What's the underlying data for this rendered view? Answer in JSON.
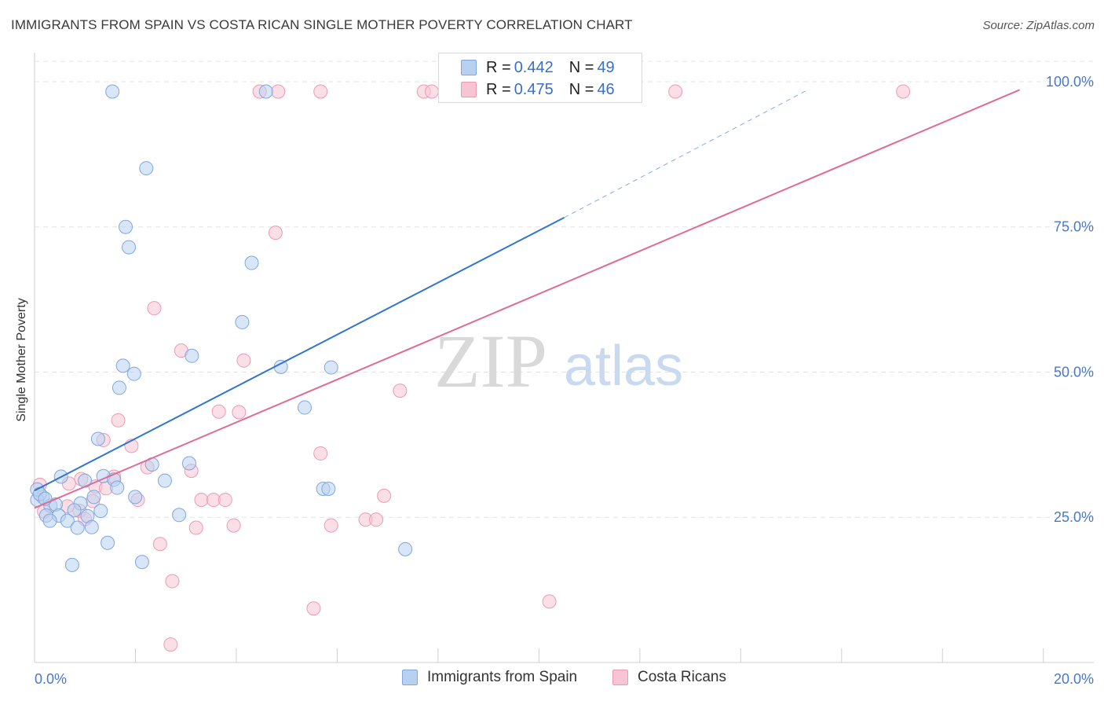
{
  "title": "IMMIGRANTS FROM SPAIN VS COSTA RICAN SINGLE MOTHER POVERTY CORRELATION CHART",
  "source": "Source: ZipAtlas.com",
  "watermark": {
    "zip": "ZIP",
    "atlas": "atlas"
  },
  "legend": {
    "rows": [
      {
        "r_label": "R = ",
        "r_value": "0.442",
        "n_label": "N = ",
        "n_value": "49"
      },
      {
        "r_label": "R = ",
        "r_value": "0.475",
        "n_label": "N = ",
        "n_value": "46"
      }
    ],
    "series": [
      "Immigrants from Spain",
      "Costa Ricans"
    ]
  },
  "colors": {
    "spain_fill": "#b9d1f1",
    "spain_stroke": "#7ea7e0",
    "spain_line": "#2f75d1",
    "costa_fill": "#f7c4d4",
    "costa_stroke": "#eb9ab6",
    "costa_line": "#e06b93",
    "tick_text": "#4a78c8",
    "grid": "#e3e3e3"
  },
  "chart_data": {
    "type": "scatter",
    "title": "IMMIGRANTS FROM SPAIN VS COSTA RICAN SINGLE MOTHER POVERTY CORRELATION CHART",
    "xlabel": "",
    "ylabel": "Single Mother Poverty",
    "xlim": [
      0,
      20
    ],
    "ylim": [
      0,
      105
    ],
    "x_tick_labels": [
      "0.0%",
      "20.0%"
    ],
    "y_ticks": [
      25,
      50,
      75,
      100
    ],
    "y_tick_labels": [
      "25.0%",
      "50.0%",
      "75.0%",
      "100.0%"
    ],
    "series": [
      {
        "name": "Immigrants from Spain",
        "r": 0.442,
        "n": 49,
        "trend": {
          "x0": 0.0,
          "y0": 29.6,
          "x1": 10.0,
          "y1": 76.6,
          "dashed_to_x": 14.6,
          "dashed_to_y": 98.6
        },
        "points": [
          [
            1.47,
            98.3
          ],
          [
            4.37,
            98.3
          ],
          [
            2.11,
            85.1
          ],
          [
            1.72,
            75.0
          ],
          [
            1.78,
            71.5
          ],
          [
            4.1,
            68.8
          ],
          [
            3.92,
            58.6
          ],
          [
            2.97,
            52.8
          ],
          [
            1.67,
            51.1
          ],
          [
            1.88,
            49.7
          ],
          [
            4.65,
            50.9
          ],
          [
            5.6,
            50.8
          ],
          [
            1.6,
            47.3
          ],
          [
            5.1,
            43.9
          ],
          [
            1.2,
            38.5
          ],
          [
            2.22,
            34.1
          ],
          [
            2.92,
            34.3
          ],
          [
            0.5,
            32.0
          ],
          [
            1.3,
            32.1
          ],
          [
            1.5,
            31.5
          ],
          [
            0.95,
            31.3
          ],
          [
            2.46,
            31.3
          ],
          [
            1.56,
            30.1
          ],
          [
            5.45,
            29.9
          ],
          [
            5.55,
            29.9
          ],
          [
            1.12,
            28.5
          ],
          [
            1.9,
            28.5
          ],
          [
            0.15,
            28.5
          ],
          [
            0.05,
            28.0
          ],
          [
            0.3,
            27.0
          ],
          [
            0.4,
            27.2
          ],
          [
            0.87,
            27.4
          ],
          [
            0.75,
            26.2
          ],
          [
            1.25,
            26.1
          ],
          [
            0.22,
            25.3
          ],
          [
            0.46,
            25.3
          ],
          [
            2.73,
            25.4
          ],
          [
            1.0,
            25.2
          ],
          [
            0.62,
            24.4
          ],
          [
            0.29,
            24.4
          ],
          [
            0.81,
            23.2
          ],
          [
            1.08,
            23.3
          ],
          [
            1.38,
            20.6
          ],
          [
            7.0,
            19.5
          ],
          [
            2.03,
            17.3
          ],
          [
            0.71,
            16.8
          ],
          [
            0.05,
            29.8
          ],
          [
            0.1,
            29.0
          ],
          [
            0.2,
            28.2
          ]
        ]
      },
      {
        "name": "Costa Ricans",
        "r": 0.475,
        "n": 46,
        "trend": {
          "x0": 0.0,
          "y0": 26.6,
          "x1": 18.6,
          "y1": 98.6
        },
        "points": [
          [
            4.25,
            98.3
          ],
          [
            4.6,
            98.3
          ],
          [
            5.4,
            98.3
          ],
          [
            7.35,
            98.3
          ],
          [
            7.5,
            98.3
          ],
          [
            12.1,
            98.3
          ],
          [
            16.4,
            98.3
          ],
          [
            4.55,
            74.0
          ],
          [
            2.26,
            61.0
          ],
          [
            2.77,
            53.7
          ],
          [
            3.95,
            52.0
          ],
          [
            6.9,
            46.8
          ],
          [
            3.48,
            43.2
          ],
          [
            3.86,
            43.1
          ],
          [
            1.58,
            41.7
          ],
          [
            1.3,
            38.3
          ],
          [
            1.83,
            37.3
          ],
          [
            5.4,
            36.0
          ],
          [
            2.13,
            33.6
          ],
          [
            2.96,
            33.0
          ],
          [
            0.1,
            30.6
          ],
          [
            0.88,
            31.6
          ],
          [
            0.65,
            30.8
          ],
          [
            1.15,
            30.3
          ],
          [
            1.5,
            32.0
          ],
          [
            1.35,
            30.0
          ],
          [
            1.95,
            28.0
          ],
          [
            3.15,
            28.0
          ],
          [
            3.38,
            28.0
          ],
          [
            3.6,
            28.0
          ],
          [
            6.6,
            28.7
          ],
          [
            0.62,
            26.9
          ],
          [
            0.85,
            26.1
          ],
          [
            1.1,
            27.8
          ],
          [
            0.18,
            26.0
          ],
          [
            0.95,
            24.7
          ],
          [
            6.25,
            24.6
          ],
          [
            6.45,
            24.6
          ],
          [
            3.05,
            23.2
          ],
          [
            3.76,
            23.6
          ],
          [
            5.6,
            23.6
          ],
          [
            2.37,
            20.4
          ],
          [
            2.6,
            14.0
          ],
          [
            5.27,
            9.3
          ],
          [
            9.72,
            10.5
          ],
          [
            2.57,
            3.1
          ]
        ]
      }
    ]
  }
}
